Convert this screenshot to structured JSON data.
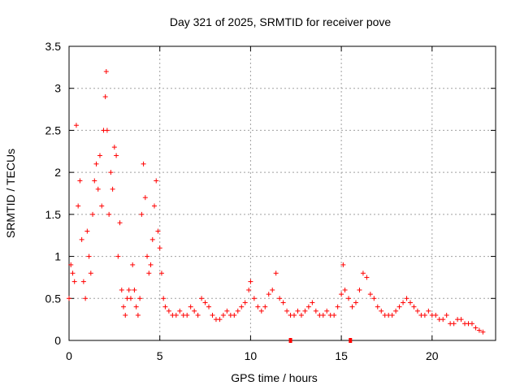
{
  "chart_data": {
    "type": "scatter",
    "title": "Day 321 of 2025, SRMTID for receiver pove",
    "xlabel": "GPS time / hours",
    "ylabel": "SRMTID / TECUs",
    "xlim": [
      0,
      23.5
    ],
    "ylim": [
      0,
      3.5
    ],
    "xticks": [
      0,
      5,
      10,
      15,
      20
    ],
    "xtick_labels": [
      "0",
      "5",
      "10",
      "15",
      "20"
    ],
    "yticks": [
      0,
      0.5,
      1,
      1.5,
      2,
      2.5,
      3,
      3.5
    ],
    "ytick_labels": [
      "0",
      "0.5",
      "1",
      "1.5",
      "2",
      "2.5",
      "3",
      "3.5"
    ],
    "grid": true,
    "marker": "plus",
    "color": "#ff0000",
    "series": [
      {
        "name": "SRMTID",
        "x": [
          0.0,
          0.1,
          0.2,
          0.3,
          0.4,
          0.5,
          0.6,
          0.7,
          0.8,
          0.9,
          1.0,
          1.1,
          1.2,
          1.3,
          1.4,
          1.5,
          1.6,
          1.7,
          1.8,
          1.9,
          2.0,
          2.05,
          2.1,
          2.2,
          2.3,
          2.4,
          2.5,
          2.6,
          2.7,
          2.8,
          2.9,
          3.0,
          3.1,
          3.2,
          3.3,
          3.4,
          3.5,
          3.6,
          3.7,
          3.8,
          3.9,
          4.0,
          4.1,
          4.2,
          4.3,
          4.4,
          4.5,
          4.6,
          4.7,
          4.8,
          4.9,
          5.0,
          5.1,
          5.2,
          5.3,
          5.5,
          5.7,
          5.9,
          6.1,
          6.3,
          6.5,
          6.7,
          6.9,
          7.1,
          7.3,
          7.5,
          7.7,
          7.9,
          8.1,
          8.3,
          8.5,
          8.7,
          8.9,
          9.1,
          9.3,
          9.5,
          9.7,
          9.9,
          10.0,
          10.2,
          10.4,
          10.6,
          10.8,
          11.0,
          11.2,
          11.4,
          11.6,
          11.8,
          12.0,
          12.2,
          12.4,
          12.6,
          12.8,
          13.0,
          13.2,
          13.4,
          13.6,
          13.8,
          14.0,
          14.2,
          14.4,
          14.6,
          14.8,
          15.0,
          15.1,
          15.2,
          15.4,
          15.6,
          15.8,
          16.0,
          16.2,
          16.4,
          16.6,
          16.8,
          17.0,
          17.2,
          17.4,
          17.6,
          17.8,
          18.0,
          18.2,
          18.4,
          18.6,
          18.8,
          19.0,
          19.2,
          19.4,
          19.6,
          19.8,
          20.0,
          20.2,
          20.4,
          20.6,
          20.8,
          21.0,
          21.2,
          21.4,
          21.6,
          21.8,
          22.0,
          22.2,
          22.4,
          22.6,
          22.8
        ],
        "y": [
          0.5,
          0.9,
          0.8,
          0.7,
          2.56,
          1.6,
          1.9,
          1.2,
          0.7,
          0.5,
          1.3,
          1.0,
          0.8,
          1.5,
          1.9,
          2.1,
          1.8,
          2.2,
          1.6,
          2.5,
          2.9,
          3.2,
          2.5,
          1.5,
          2.0,
          1.8,
          2.3,
          2.2,
          1.0,
          1.4,
          0.6,
          0.4,
          0.3,
          0.5,
          0.6,
          0.5,
          0.9,
          0.6,
          0.4,
          0.3,
          0.5,
          1.5,
          2.1,
          1.7,
          1.0,
          0.8,
          0.9,
          1.2,
          1.6,
          1.9,
          1.3,
          1.1,
          0.8,
          0.5,
          0.4,
          0.35,
          0.3,
          0.3,
          0.35,
          0.3,
          0.3,
          0.4,
          0.35,
          0.3,
          0.5,
          0.45,
          0.4,
          0.3,
          0.25,
          0.25,
          0.3,
          0.35,
          0.3,
          0.3,
          0.35,
          0.4,
          0.45,
          0.6,
          0.7,
          0.5,
          0.4,
          0.35,
          0.4,
          0.55,
          0.6,
          0.8,
          0.5,
          0.45,
          0.35,
          0.3,
          0.3,
          0.35,
          0.3,
          0.35,
          0.4,
          0.45,
          0.35,
          0.3,
          0.3,
          0.35,
          0.3,
          0.3,
          0.4,
          0.55,
          0.9,
          0.6,
          0.5,
          0.4,
          0.45,
          0.6,
          0.8,
          0.75,
          0.55,
          0.5,
          0.4,
          0.35,
          0.3,
          0.3,
          0.3,
          0.35,
          0.4,
          0.45,
          0.5,
          0.45,
          0.4,
          0.35,
          0.3,
          0.3,
          0.35,
          0.3,
          0.3,
          0.25,
          0.25,
          0.3,
          0.2,
          0.2,
          0.25,
          0.25,
          0.2,
          0.2,
          0.2,
          0.15,
          0.12,
          0.1
        ]
      }
    ],
    "ground_markers": [
      {
        "x": 12.2,
        "y": 0
      },
      {
        "x": 15.5,
        "y": 0
      }
    ]
  }
}
